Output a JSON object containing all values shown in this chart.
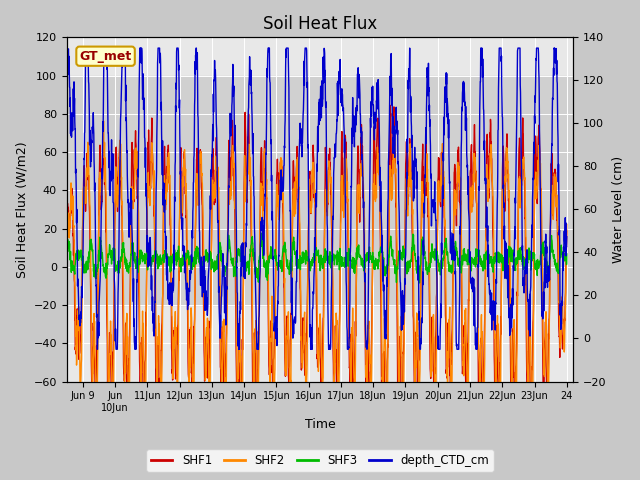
{
  "title": "Soil Heat Flux",
  "xlabel": "Time",
  "ylabel_left": "Soil Heat Flux (W/m2)",
  "ylabel_right": "Water Level (cm)",
  "ylim_left": [
    -60,
    120
  ],
  "ylim_right": [
    -20,
    140
  ],
  "yticks_left": [
    -60,
    -40,
    -20,
    0,
    20,
    40,
    60,
    80,
    100,
    120
  ],
  "yticks_right": [
    -20,
    0,
    20,
    40,
    60,
    80,
    100,
    120,
    140
  ],
  "colors": {
    "SHF1": "#cc0000",
    "SHF2": "#ff8800",
    "SHF3": "#00bb00",
    "depth_CTD_cm": "#0000cc"
  },
  "annotation_text": "GT_met",
  "annotation_color": "#990000",
  "annotation_bg": "#ffffcc",
  "annotation_edge": "#cc9900",
  "fig_bg": "#c8c8c8",
  "plot_bg": "#e8e8e8",
  "band_color": "#d0d0d0",
  "grid_color": "#ffffff",
  "seed": 7
}
